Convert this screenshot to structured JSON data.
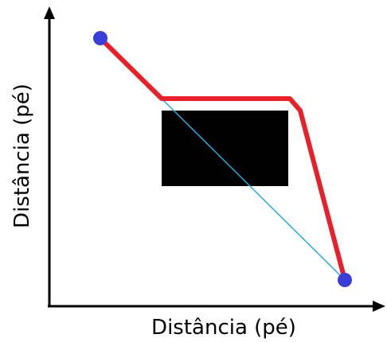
{
  "x_axis_label": "Distância (pé)",
  "y_axis_label": "Distância (pé)",
  "colors": {
    "axis": "#000000",
    "route": "#e8202a",
    "direct_line": "#2aa8e0",
    "endpoint": "#3a3ed8",
    "obstacle": "#000000"
  },
  "elements": {
    "obstacle": "black rectangle obstacle",
    "route": "red path going around the obstacle",
    "direct_line": "thin blue straight line through the obstacle",
    "endpoints": [
      "start point",
      "end point"
    ]
  }
}
